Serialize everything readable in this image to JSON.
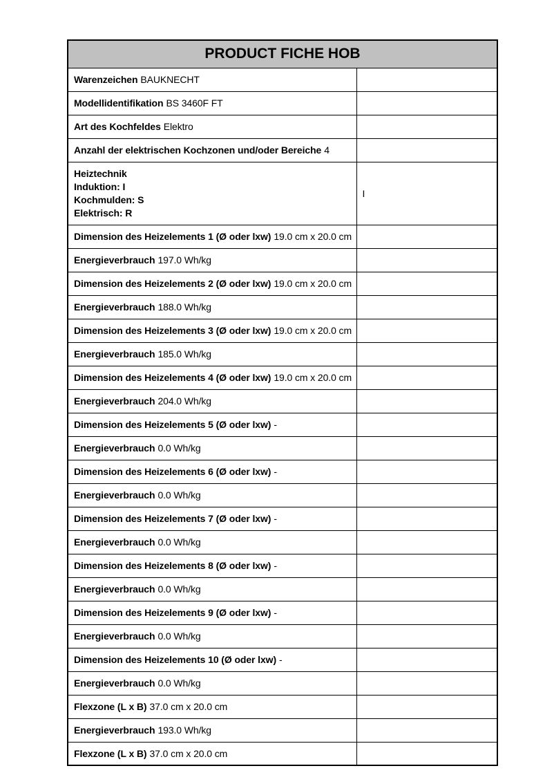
{
  "table": {
    "title": "PRODUCT FICHE HOB",
    "header_bg": "#c0c0c0",
    "border_color": "#000000",
    "page_bg": "#ffffff",
    "rows": [
      {
        "label": "Warenzeichen",
        "value": "BAUKNECHT",
        "right": ""
      },
      {
        "label": "Modellidentifikation",
        "value": "BS 3460F FT",
        "right": ""
      },
      {
        "label": "Art des Kochfeldes",
        "value": "Elektro",
        "right": ""
      },
      {
        "label": "Anzahl der elektrischen Kochzonen und/oder Bereiche",
        "value": "4",
        "right": ""
      },
      {
        "lines": [
          "Heiztechnik",
          "Induktion: I",
          "Kochmulden: S",
          "Elektrisch: R"
        ],
        "right": "I"
      },
      {
        "label": "Dimension des Heizelements 1 (Ø oder lxw)",
        "value": "19.0 cm x 20.0 cm",
        "right": ""
      },
      {
        "label": "Energieverbrauch",
        "value": "197.0 Wh/kg",
        "right": ""
      },
      {
        "label": "Dimension des Heizelements 2 (Ø oder lxw)",
        "value": "19.0 cm x 20.0 cm",
        "right": ""
      },
      {
        "label": "Energieverbrauch",
        "value": "188.0 Wh/kg",
        "right": ""
      },
      {
        "label": "Dimension des Heizelements 3 (Ø oder lxw)",
        "value": "19.0 cm x 20.0 cm",
        "right": ""
      },
      {
        "label": "Energieverbrauch",
        "value": "185.0 Wh/kg",
        "right": ""
      },
      {
        "label": "Dimension des Heizelements 4 (Ø oder lxw)",
        "value": "19.0 cm x 20.0 cm",
        "right": ""
      },
      {
        "label": "Energieverbrauch",
        "value": "204.0 Wh/kg",
        "right": ""
      },
      {
        "label": "Dimension des Heizelements 5 (Ø oder lxw)",
        "value": "-",
        "right": ""
      },
      {
        "label": "Energieverbrauch",
        "value": "0.0 Wh/kg",
        "right": ""
      },
      {
        "label": "Dimension des Heizelements 6 (Ø oder lxw)",
        "value": "-",
        "right": ""
      },
      {
        "label": "Energieverbrauch",
        "value": "0.0 Wh/kg",
        "right": ""
      },
      {
        "label": "Dimension des Heizelements 7 (Ø oder lxw)",
        "value": "-",
        "right": ""
      },
      {
        "label": "Energieverbrauch",
        "value": "0.0 Wh/kg",
        "right": ""
      },
      {
        "label": "Dimension des Heizelements 8 (Ø oder lxw)",
        "value": "-",
        "right": ""
      },
      {
        "label": "Energieverbrauch",
        "value": "0.0 Wh/kg",
        "right": ""
      },
      {
        "label": "Dimension des Heizelements 9 (Ø oder lxw)",
        "value": "-",
        "right": ""
      },
      {
        "label": "Energieverbrauch",
        "value": "0.0 Wh/kg",
        "right": ""
      },
      {
        "label": "Dimension des Heizelements 10 (Ø oder lxw)",
        "value": "-",
        "right": ""
      },
      {
        "label": "Energieverbrauch",
        "value": "0.0 Wh/kg",
        "right": ""
      },
      {
        "label": "Flexzone (L x B)",
        "value": "37.0 cm x 20.0 cm",
        "right": ""
      },
      {
        "label": "Energieverbrauch",
        "value": "193.0 Wh/kg",
        "right": ""
      },
      {
        "label": "Flexzone (L x B)",
        "value": "37.0 cm x 20.0 cm",
        "right": ""
      }
    ]
  }
}
